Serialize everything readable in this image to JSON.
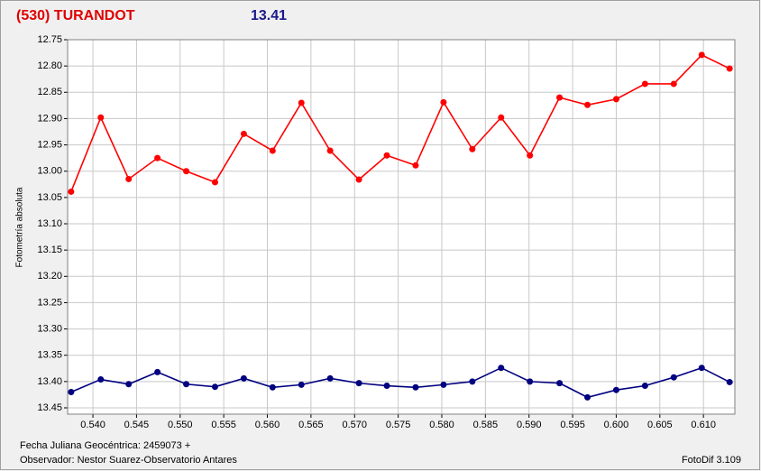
{
  "chart_data": {
    "type": "line",
    "title": "(530) TURANDOT",
    "subtitle": "13.41",
    "ylabel": "Fotometría absoluta",
    "xlabel": "Fecha Juliana Geocéntrica: 2459073 +",
    "y_inverted": true,
    "grid": true,
    "x": [
      0.5375,
      0.5409,
      0.5441,
      0.5474,
      0.5507,
      0.554,
      0.5573,
      0.5606,
      0.5639,
      0.5672,
      0.5705,
      0.5737,
      0.577,
      0.5802,
      0.5835,
      0.5868,
      0.5901,
      0.5935,
      0.5967,
      0.6,
      0.6033,
      0.6066,
      0.6098,
      0.613
    ],
    "series": [
      {
        "color": "#ff0000",
        "values": [
          13.039,
          12.898,
          13.015,
          12.975,
          13.0,
          13.021,
          12.929,
          12.961,
          12.87,
          12.961,
          13.016,
          12.97,
          12.989,
          12.869,
          12.958,
          12.898,
          12.97,
          12.86,
          12.874,
          12.863,
          12.834,
          12.834,
          12.779,
          12.805
        ]
      },
      {
        "color": "#000080",
        "values": [
          13.42,
          13.396,
          13.405,
          13.382,
          13.405,
          13.41,
          13.394,
          13.411,
          13.406,
          13.394,
          13.403,
          13.408,
          13.411,
          13.406,
          13.4,
          13.374,
          13.4,
          13.403,
          13.43,
          13.416,
          13.408,
          13.392,
          13.374,
          13.401
        ]
      }
    ],
    "xlim": [
      0.5371,
      0.6136
    ],
    "ylim": [
      12.75,
      13.462
    ],
    "xticks": [
      {
        "value": 0.54,
        "label": "0.540"
      },
      0.545,
      {
        "value": 0.55,
        "label": "0.550"
      },
      0.555,
      {
        "value": 0.56,
        "label": "0.560"
      },
      0.565,
      {
        "value": 0.57,
        "label": "0.570"
      },
      0.575,
      {
        "value": 0.58,
        "label": "0.580"
      },
      0.585,
      {
        "value": 0.59,
        "label": "0.590"
      },
      0.595,
      {
        "value": 0.6,
        "label": "0.600"
      },
      0.605,
      {
        "value": 0.61,
        "label": "0.610"
      }
    ],
    "yticks": [
      12.75,
      {
        "value": 12.8,
        "label": "12.80"
      },
      12.85,
      {
        "value": 12.9,
        "label": "12.90"
      },
      12.95,
      {
        "value": 13.0,
        "label": "13.00"
      },
      13.05,
      {
        "value": 13.1,
        "label": "13.10"
      },
      13.15,
      {
        "value": 13.2,
        "label": "13.20"
      },
      13.25,
      {
        "value": 13.3,
        "label": "13.30"
      },
      13.35,
      {
        "value": 13.4,
        "label": "13.40"
      },
      13.45
    ]
  },
  "footer": {
    "observer": "Observador: Nestor Suarez-Observatorio Antares",
    "software": "FotoDif 3.109"
  }
}
